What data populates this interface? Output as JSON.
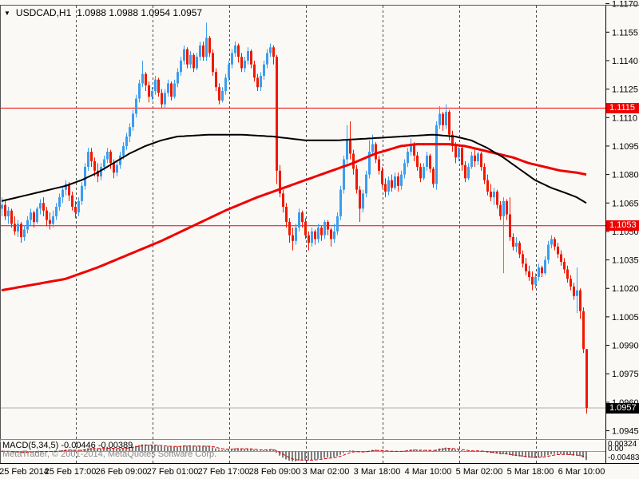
{
  "header": {
    "title": "USDCAD,H1",
    "ohlc": "1.0988 1.0988 1.0954 1.0957",
    "dropdown_icon": "▼"
  },
  "watermark": "MetaTrader, © 2001-2014, MetaQuotes Software Corp.",
  "chart_data": {
    "type": "candlestick",
    "symbol": "USDCAD",
    "timeframe": "H1",
    "title": "USDCAD,H1  1.0988 1.0988 1.0954 1.0957",
    "ylim": [
      1.09406,
      1.1169
    ],
    "grid": "vertical-day-separators-only",
    "y_ticks": [
      "1.1170",
      "1.1155",
      "1.1140",
      "1.1125",
      "1.1110",
      "1.1095",
      "1.1080",
      "1.1065",
      "1.1050",
      "1.1035",
      "1.1020",
      "1.1005",
      "1.0990",
      "1.0975",
      "1.0960",
      "1.0945"
    ],
    "x_ticks": [
      "25 Feb 2014",
      "25 Feb 17:00",
      "26 Feb 09:00",
      "27 Feb 01:00",
      "27 Feb 17:00",
      "28 Feb 09:00",
      "3 Mar 02:00",
      "3 Mar 18:00",
      "4 Mar 10:00",
      "5 Mar 02:00",
      "5 Mar 18:00",
      "6 Mar 10:00"
    ],
    "hlines": [
      {
        "price": 1.1115,
        "label": "1.1115",
        "color": "#f00000"
      },
      {
        "price": 1.1053,
        "label": "1.1053",
        "color": "#f00000"
      }
    ],
    "current_price": {
      "price": 1.0957,
      "label": "1.0957"
    },
    "candles": [
      [
        1.1062,
        1.1068,
        1.1058,
        1.1064
      ],
      [
        1.1064,
        1.1066,
        1.1056,
        1.1058
      ],
      [
        1.1058,
        1.1063,
        1.1054,
        1.1061
      ],
      [
        1.1061,
        1.1062,
        1.1052,
        1.1054
      ],
      [
        1.1054,
        1.1058,
        1.1048,
        1.105
      ],
      [
        1.105,
        1.1056,
        1.1047,
        1.1054
      ],
      [
        1.1054,
        1.1055,
        1.1044,
        1.1047
      ],
      [
        1.1047,
        1.1053,
        1.1045,
        1.1051
      ],
      [
        1.1051,
        1.1058,
        1.1049,
        1.1056
      ],
      [
        1.1056,
        1.1062,
        1.1053,
        1.106
      ],
      [
        1.106,
        1.1061,
        1.1052,
        1.1055
      ],
      [
        1.1055,
        1.1063,
        1.1054,
        1.1062
      ],
      [
        1.1062,
        1.1067,
        1.1059,
        1.1065
      ],
      [
        1.1065,
        1.1068,
        1.1058,
        1.1061
      ],
      [
        1.1061,
        1.1063,
        1.1053,
        1.1056
      ],
      [
        1.1056,
        1.106,
        1.1051,
        1.1054
      ],
      [
        1.1054,
        1.1061,
        1.1052,
        1.1058
      ],
      [
        1.1058,
        1.1065,
        1.1056,
        1.1063
      ],
      [
        1.1063,
        1.107,
        1.1061,
        1.1068
      ],
      [
        1.1068,
        1.1074,
        1.1065,
        1.1072
      ],
      [
        1.1072,
        1.1077,
        1.1069,
        1.1075
      ],
      [
        1.1075,
        1.1076,
        1.1066,
        1.1069
      ],
      [
        1.1069,
        1.1071,
        1.1061,
        1.1063
      ],
      [
        1.1063,
        1.1066,
        1.1057,
        1.106
      ],
      [
        1.106,
        1.1068,
        1.1058,
        1.1066
      ],
      [
        1.1066,
        1.1076,
        1.1064,
        1.1074
      ],
      [
        1.1074,
        1.1086,
        1.1072,
        1.1084
      ],
      [
        1.1084,
        1.1094,
        1.1082,
        1.1092
      ],
      [
        1.1092,
        1.1094,
        1.1084,
        1.1087
      ],
      [
        1.1087,
        1.1089,
        1.1079,
        1.1082
      ],
      [
        1.1082,
        1.1086,
        1.1076,
        1.1079
      ],
      [
        1.1079,
        1.1086,
        1.1077,
        1.1084
      ],
      [
        1.1084,
        1.109,
        1.1082,
        1.1088
      ],
      [
        1.1088,
        1.1094,
        1.1086,
        1.1092
      ],
      [
        1.1092,
        1.1093,
        1.1083,
        1.1086
      ],
      [
        1.1086,
        1.1088,
        1.1078,
        1.1081
      ],
      [
        1.1081,
        1.1087,
        1.1079,
        1.1085
      ],
      [
        1.1085,
        1.1092,
        1.1083,
        1.109
      ],
      [
        1.109,
        1.1097,
        1.1088,
        1.1095
      ],
      [
        1.1095,
        1.1102,
        1.1093,
        1.11
      ],
      [
        1.11,
        1.1107,
        1.1097,
        1.1105
      ],
      [
        1.1105,
        1.1114,
        1.1103,
        1.1112
      ],
      [
        1.1112,
        1.1122,
        1.111,
        1.112
      ],
      [
        1.112,
        1.113,
        1.1118,
        1.1128
      ],
      [
        1.1128,
        1.114,
        1.1126,
        1.1133
      ],
      [
        1.1133,
        1.1134,
        1.1124,
        1.1127
      ],
      [
        1.1127,
        1.1129,
        1.1118,
        1.1121
      ],
      [
        1.1121,
        1.1126,
        1.1119,
        1.1124
      ],
      [
        1.1124,
        1.1132,
        1.1122,
        1.113
      ],
      [
        1.113,
        1.1131,
        1.1121,
        1.1123
      ],
      [
        1.1123,
        1.1125,
        1.1115,
        1.1117
      ],
      [
        1.1117,
        1.1125,
        1.1115,
        1.1123
      ],
      [
        1.1123,
        1.113,
        1.1121,
        1.1128
      ],
      [
        1.1128,
        1.1129,
        1.1119,
        1.1121
      ],
      [
        1.1121,
        1.113,
        1.112,
        1.1128
      ],
      [
        1.1128,
        1.1136,
        1.1126,
        1.1134
      ],
      [
        1.1134,
        1.1142,
        1.1132,
        1.114
      ],
      [
        1.114,
        1.1148,
        1.1138,
        1.1146
      ],
      [
        1.1146,
        1.1147,
        1.1136,
        1.1138
      ],
      [
        1.1138,
        1.1145,
        1.1136,
        1.1143
      ],
      [
        1.1143,
        1.1144,
        1.1134,
        1.1136
      ],
      [
        1.1136,
        1.1144,
        1.1135,
        1.1142
      ],
      [
        1.1142,
        1.115,
        1.114,
        1.1148
      ],
      [
        1.1148,
        1.115,
        1.114,
        1.1142
      ],
      [
        1.1142,
        1.116,
        1.114,
        1.1152
      ],
      [
        1.1152,
        1.1153,
        1.1142,
        1.1144
      ],
      [
        1.1144,
        1.1146,
        1.1132,
        1.1134
      ],
      [
        1.1134,
        1.1136,
        1.1124,
        1.1126
      ],
      [
        1.1126,
        1.1128,
        1.1117,
        1.1119
      ],
      [
        1.1119,
        1.1126,
        1.1118,
        1.1124
      ],
      [
        1.1124,
        1.1133,
        1.1122,
        1.1131
      ],
      [
        1.1131,
        1.114,
        1.1129,
        1.1138
      ],
      [
        1.1138,
        1.1146,
        1.1136,
        1.1144
      ],
      [
        1.1144,
        1.115,
        1.1142,
        1.1148
      ],
      [
        1.1148,
        1.1149,
        1.1139,
        1.1142
      ],
      [
        1.1142,
        1.1144,
        1.1134,
        1.1136
      ],
      [
        1.1136,
        1.1142,
        1.1134,
        1.114
      ],
      [
        1.114,
        1.1147,
        1.1138,
        1.1145
      ],
      [
        1.1145,
        1.1146,
        1.1136,
        1.1138
      ],
      [
        1.1138,
        1.114,
        1.1129,
        1.1131
      ],
      [
        1.1131,
        1.1133,
        1.1124,
        1.1126
      ],
      [
        1.1126,
        1.1134,
        1.1124,
        1.1132
      ],
      [
        1.1132,
        1.114,
        1.113,
        1.1138
      ],
      [
        1.1138,
        1.1146,
        1.1136,
        1.1144
      ],
      [
        1.1144,
        1.1149,
        1.1142,
        1.1147
      ],
      [
        1.1147,
        1.1148,
        1.1138,
        1.1142
      ],
      [
        1.1142,
        1.1143,
        1.1075,
        1.1082
      ],
      [
        1.1082,
        1.1085,
        1.1068,
        1.107
      ],
      [
        1.107,
        1.1072,
        1.106,
        1.1063
      ],
      [
        1.1063,
        1.1065,
        1.1052,
        1.1055
      ],
      [
        1.1055,
        1.1057,
        1.1044,
        1.1048
      ],
      [
        1.1048,
        1.1052,
        1.104,
        1.1045
      ],
      [
        1.1045,
        1.1054,
        1.1043,
        1.1052
      ],
      [
        1.1052,
        1.1062,
        1.105,
        1.106
      ],
      [
        1.106,
        1.1061,
        1.1052,
        1.1055
      ],
      [
        1.1055,
        1.1057,
        1.1046,
        1.1048
      ],
      [
        1.1048,
        1.105,
        1.104,
        1.1044
      ],
      [
        1.1044,
        1.1052,
        1.1042,
        1.105
      ],
      [
        1.105,
        1.1051,
        1.1043,
        1.1046
      ],
      [
        1.1046,
        1.1054,
        1.1044,
        1.1052
      ],
      [
        1.1052,
        1.1053,
        1.1045,
        1.1048
      ],
      [
        1.1048,
        1.1056,
        1.1046,
        1.1055
      ],
      [
        1.1055,
        1.1056,
        1.1048,
        1.1051
      ],
      [
        1.1051,
        1.1052,
        1.1042,
        1.1046
      ],
      [
        1.1046,
        1.1054,
        1.1044,
        1.105
      ],
      [
        1.105,
        1.106,
        1.1048,
        1.1058
      ],
      [
        1.1058,
        1.1074,
        1.1056,
        1.1072
      ],
      [
        1.1072,
        1.109,
        1.107,
        1.1088
      ],
      [
        1.1088,
        1.1106,
        1.1086,
        1.1098
      ],
      [
        1.1098,
        1.1108,
        1.1088,
        1.1091
      ],
      [
        1.1091,
        1.1093,
        1.108,
        1.1083
      ],
      [
        1.1083,
        1.1085,
        1.107,
        1.1072
      ],
      [
        1.1072,
        1.1074,
        1.1055,
        1.1062
      ],
      [
        1.1062,
        1.1072,
        1.106,
        1.107
      ],
      [
        1.107,
        1.1082,
        1.1068,
        1.108
      ],
      [
        1.108,
        1.1098,
        1.1078,
        1.1092
      ],
      [
        1.1092,
        1.1101,
        1.109,
        1.1096
      ],
      [
        1.1096,
        1.1097,
        1.1086,
        1.1088
      ],
      [
        1.1088,
        1.109,
        1.108,
        1.1082
      ],
      [
        1.1082,
        1.1084,
        1.1073,
        1.1075
      ],
      [
        1.1075,
        1.1078,
        1.1068,
        1.1071
      ],
      [
        1.1071,
        1.1079,
        1.1069,
        1.1077
      ],
      [
        1.1077,
        1.108,
        1.1071,
        1.1073
      ],
      [
        1.1073,
        1.1081,
        1.1072,
        1.1079
      ],
      [
        1.1079,
        1.1081,
        1.1071,
        1.1074
      ],
      [
        1.1074,
        1.1082,
        1.1072,
        1.108
      ],
      [
        1.108,
        1.1088,
        1.1078,
        1.1086
      ],
      [
        1.1086,
        1.1094,
        1.1084,
        1.1092
      ],
      [
        1.1092,
        1.1099,
        1.109,
        1.1096
      ],
      [
        1.1096,
        1.1097,
        1.1087,
        1.109
      ],
      [
        1.109,
        1.1092,
        1.1082,
        1.1084
      ],
      [
        1.1084,
        1.1086,
        1.1076,
        1.1078
      ],
      [
        1.1078,
        1.1086,
        1.1077,
        1.1084
      ],
      [
        1.1084,
        1.1092,
        1.1082,
        1.109
      ],
      [
        1.109,
        1.1091,
        1.1081,
        1.1083
      ],
      [
        1.1083,
        1.1084,
        1.1073,
        1.1075
      ],
      [
        1.1075,
        1.1108,
        1.1072,
        1.1106
      ],
      [
        1.1106,
        1.1116,
        1.1104,
        1.1112
      ],
      [
        1.1112,
        1.1113,
        1.1103,
        1.1106
      ],
      [
        1.1106,
        1.1117,
        1.1104,
        1.1113
      ],
      [
        1.1113,
        1.1114,
        1.1098,
        1.1101
      ],
      [
        1.1101,
        1.1103,
        1.1092,
        1.1095
      ],
      [
        1.1095,
        1.1097,
        1.1086,
        1.1089
      ],
      [
        1.1089,
        1.1096,
        1.1087,
        1.1094
      ],
      [
        1.1094,
        1.1095,
        1.1082,
        1.1085
      ],
      [
        1.1085,
        1.1087,
        1.1076,
        1.1078
      ],
      [
        1.1078,
        1.1086,
        1.1077,
        1.1084
      ],
      [
        1.1084,
        1.1092,
        1.1083,
        1.109
      ],
      [
        1.109,
        1.1093,
        1.1084,
        1.1087
      ],
      [
        1.1087,
        1.1092,
        1.1085,
        1.1091
      ],
      [
        1.1091,
        1.1092,
        1.1082,
        1.1084
      ],
      [
        1.1084,
        1.1086,
        1.1075,
        1.1077
      ],
      [
        1.1077,
        1.108,
        1.1069,
        1.1071
      ],
      [
        1.1071,
        1.1075,
        1.1066,
        1.1068
      ],
      [
        1.1068,
        1.1073,
        1.1064,
        1.1071
      ],
      [
        1.1071,
        1.1072,
        1.1062,
        1.1064
      ],
      [
        1.1064,
        1.1066,
        1.1056,
        1.1058
      ],
      [
        1.1058,
        1.1068,
        1.1028,
        1.1066
      ],
      [
        1.1066,
        1.1067,
        1.1056,
        1.1059
      ],
      [
        1.1059,
        1.1068,
        1.1045,
        1.1047
      ],
      [
        1.1047,
        1.1049,
        1.104,
        1.1042
      ],
      [
        1.1042,
        1.1047,
        1.1039,
        1.1044
      ],
      [
        1.1044,
        1.1045,
        1.1036,
        1.1038
      ],
      [
        1.1038,
        1.104,
        1.1031,
        1.1033
      ],
      [
        1.1033,
        1.1036,
        1.1027,
        1.1029
      ],
      [
        1.1029,
        1.1032,
        1.1024,
        1.1026
      ],
      [
        1.1026,
        1.1029,
        1.1019,
        1.1022
      ],
      [
        1.1022,
        1.1028,
        1.102,
        1.1026
      ],
      [
        1.1026,
        1.1033,
        1.1024,
        1.1031
      ],
      [
        1.1031,
        1.1032,
        1.1026,
        1.1028
      ],
      [
        1.1028,
        1.1037,
        1.1027,
        1.1035
      ],
      [
        1.1035,
        1.1045,
        1.1033,
        1.1043
      ],
      [
        1.1043,
        1.1048,
        1.1041,
        1.1046
      ],
      [
        1.1046,
        1.1047,
        1.104,
        1.1042
      ],
      [
        1.1042,
        1.1044,
        1.1036,
        1.1038
      ],
      [
        1.1038,
        1.104,
        1.1032,
        1.1034
      ],
      [
        1.1034,
        1.1036,
        1.1028,
        1.103
      ],
      [
        1.103,
        1.1032,
        1.1023,
        1.1025
      ],
      [
        1.1025,
        1.1027,
        1.1019,
        1.1021
      ],
      [
        1.1021,
        1.1023,
        1.1014,
        1.1016
      ],
      [
        1.1016,
        1.1031,
        1.1007,
        1.1019
      ],
      [
        1.1019,
        1.102,
        1.1004,
        1.1008
      ],
      [
        1.1008,
        1.101,
        1.0986,
        1.0988
      ],
      [
        1.0988,
        1.0988,
        1.0954,
        1.0957
      ]
    ],
    "ma_black": {
      "name": "moving-average-fast-black",
      "points": [
        [
          0,
          1.1066
        ],
        [
          5,
          1.1068
        ],
        [
          10,
          1.107
        ],
        [
          15,
          1.1072
        ],
        [
          20,
          1.1074
        ],
        [
          25,
          1.1077
        ],
        [
          30,
          1.1081
        ],
        [
          35,
          1.1086
        ],
        [
          40,
          1.1091
        ],
        [
          45,
          1.1095
        ],
        [
          50,
          1.1098
        ],
        [
          55,
          1.11
        ],
        [
          65,
          1.1101
        ],
        [
          75,
          1.1101
        ],
        [
          85,
          1.11
        ],
        [
          95,
          1.1098
        ],
        [
          105,
          1.1098
        ],
        [
          115,
          1.1099
        ],
        [
          125,
          1.11
        ],
        [
          135,
          1.1101
        ],
        [
          142,
          1.11
        ],
        [
          147,
          1.1098
        ],
        [
          152,
          1.1094
        ],
        [
          157,
          1.1089
        ],
        [
          162,
          1.1083
        ],
        [
          167,
          1.1077
        ],
        [
          172,
          1.1073
        ],
        [
          177,
          1.107
        ],
        [
          180,
          1.1068
        ],
        [
          183,
          1.1065
        ]
      ]
    },
    "ma_red": {
      "name": "moving-average-slow-red",
      "points": [
        [
          0,
          1.1019
        ],
        [
          10,
          1.1022
        ],
        [
          20,
          1.1025
        ],
        [
          30,
          1.1031
        ],
        [
          40,
          1.1038
        ],
        [
          50,
          1.1045
        ],
        [
          60,
          1.1053
        ],
        [
          70,
          1.1061
        ],
        [
          80,
          1.1068
        ],
        [
          90,
          1.1074
        ],
        [
          100,
          1.108
        ],
        [
          110,
          1.1086
        ],
        [
          117,
          1.1091
        ],
        [
          125,
          1.1095
        ],
        [
          130,
          1.1096
        ],
        [
          140,
          1.1096
        ],
        [
          145,
          1.1095
        ],
        [
          150,
          1.1093
        ],
        [
          155,
          1.1091
        ],
        [
          160,
          1.1089
        ],
        [
          165,
          1.1086
        ],
        [
          170,
          1.1084
        ],
        [
          175,
          1.1082
        ],
        [
          180,
          1.1081
        ],
        [
          183,
          1.108
        ]
      ]
    },
    "macd": {
      "label": "MACD(5,34,5)",
      "values": "-0.00446 -0.00389",
      "axis_max": "0.00324",
      "axis_zero": "0.00",
      "axis_min": "-0.00483",
      "fast": 5,
      "slow": 34,
      "signal": 5
    },
    "colors": {
      "bull": "#3a9df0",
      "bear": "#f01800",
      "ma_black": "#000000",
      "ma_red": "#f00000",
      "hline": "#f00000",
      "current_line": "#b0b0b0",
      "hist": "#7d7d7d",
      "signal": "#d40000",
      "bg": "#fbf9f6",
      "separator": "#4a4a4a",
      "axis_text": "#000000"
    }
  }
}
